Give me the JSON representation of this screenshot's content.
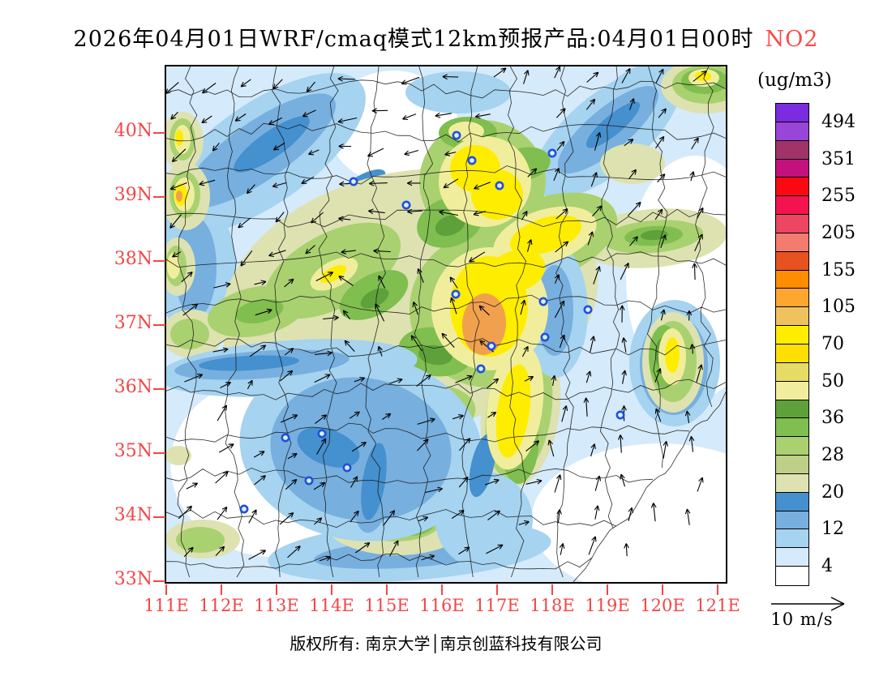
{
  "title": {
    "prefix": "2026年04月01日WRF/cmaq模式12km预报产品:04月01日00时",
    "pollutant": "NO2",
    "pollutant_color": "#F94B46"
  },
  "axes": {
    "lat_labels": [
      "40N",
      "39N",
      "38N",
      "37N",
      "36N",
      "35N",
      "34N",
      "33N"
    ],
    "lon_labels": [
      "111E",
      "112E",
      "113E",
      "114E",
      "115E",
      "116E",
      "117E",
      "118E",
      "119E",
      "120E",
      "121E"
    ],
    "color": "#F34646"
  },
  "colorbar": {
    "unit": "(ug/m3)",
    "cells": [
      {
        "color": "#7B2BE0",
        "label": "494"
      },
      {
        "color": "#9945D8",
        "label": null
      },
      {
        "color": "#A03468",
        "label": "351"
      },
      {
        "color": "#C3117E",
        "label": null
      },
      {
        "color": "#FA0A10",
        "label": "255"
      },
      {
        "color": "#F3134F",
        "label": null
      },
      {
        "color": "#ED4663",
        "label": "205"
      },
      {
        "color": "#F47B70",
        "label": null
      },
      {
        "color": "#E65321",
        "label": "155"
      },
      {
        "color": "#FE8D00",
        "label": null
      },
      {
        "color": "#FFA62E",
        "label": "105"
      },
      {
        "color": "#EFC25F",
        "label": null
      },
      {
        "color": "#FFED00",
        "label": "70"
      },
      {
        "color": "#FFDF00",
        "label": null
      },
      {
        "color": "#E6DB64",
        "label": "50"
      },
      {
        "color": "#F0EE9C",
        "label": null
      },
      {
        "color": "#5EA13B",
        "label": "36"
      },
      {
        "color": "#7FBE4F",
        "label": null
      },
      {
        "color": "#A9D170",
        "label": "28"
      },
      {
        "color": "#BECF87",
        "label": null
      },
      {
        "color": "#DDE2B0",
        "label": "20"
      },
      {
        "color": "#4590CE",
        "label": null
      },
      {
        "color": "#77AFDE",
        "label": "12"
      },
      {
        "color": "#A5D3F0",
        "label": null
      },
      {
        "color": "#D5EAFA",
        "label": "4"
      },
      {
        "color": "#FFFFFF",
        "label": null
      }
    ]
  },
  "map": {
    "boundary_color": "#151515",
    "city_marker_color": "#2050E0",
    "hotspot_color": "#F1A14E"
  },
  "wind_legend": {
    "label": "10 m/s"
  },
  "footer": {
    "text": "版权所有: 南京大学│南京创蓝科技有限公司"
  }
}
